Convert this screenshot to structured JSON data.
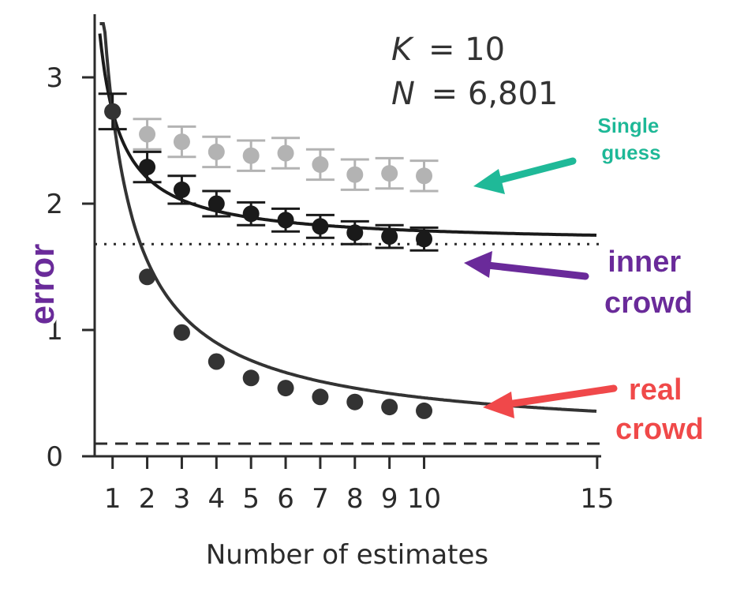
{
  "chart_data": {
    "type": "scatter",
    "title": "",
    "xlabel": "Number of estimates",
    "ylabel": "error",
    "xlim": [
      0.4,
      15
    ],
    "ylim": [
      0,
      3.5
    ],
    "x_ticks": [
      1,
      2,
      3,
      4,
      5,
      6,
      7,
      8,
      9,
      10,
      15
    ],
    "x_tick_labels": [
      "1",
      "2",
      "3",
      "4",
      "5",
      "6",
      "7",
      "8",
      "9",
      "10",
      "15"
    ],
    "y_ticks": [
      0,
      1,
      2,
      3
    ],
    "y_tick_labels": [
      "0",
      "1",
      "2",
      "3"
    ],
    "params": [
      {
        "symbol": "K",
        "value": "= 10"
      },
      {
        "symbol": "N",
        "value": "= 6,801"
      }
    ],
    "series": [
      {
        "name": "Single guess",
        "color": "#b3b3b3",
        "x": [
          2,
          3,
          4,
          5,
          6,
          7,
          8,
          9,
          10
        ],
        "y": [
          2.55,
          2.49,
          2.41,
          2.38,
          2.4,
          2.31,
          2.23,
          2.24,
          2.22
        ],
        "err": [
          0.12,
          0.12,
          0.12,
          0.12,
          0.12,
          0.12,
          0.12,
          0.12,
          0.12
        ]
      },
      {
        "name": "inner crowd",
        "color": "#1a1a1a",
        "x": [
          1,
          2,
          3,
          4,
          5,
          6,
          7,
          8,
          9,
          10
        ],
        "y": [
          2.73,
          2.29,
          2.11,
          2.0,
          1.92,
          1.87,
          1.82,
          1.77,
          1.74,
          1.72
        ],
        "err": [
          0.14,
          0.12,
          0.11,
          0.1,
          0.09,
          0.09,
          0.09,
          0.09,
          0.09,
          0.09
        ],
        "fit": {
          "asymptote": 1.68,
          "a": 1.05,
          "power": 1.0
        }
      },
      {
        "name": "real crowd",
        "color": "#333333",
        "x": [
          1,
          2,
          3,
          4,
          5,
          6,
          7,
          8,
          9,
          10
        ],
        "y": [
          2.73,
          1.42,
          0.98,
          0.75,
          0.62,
          0.54,
          0.47,
          0.43,
          0.39,
          0.36
        ],
        "fit": {
          "asymptote": 0.1,
          "a": 2.63,
          "power": 0.86
        }
      }
    ],
    "reference_lines": [
      {
        "style": "dotted",
        "y": 1.68
      },
      {
        "style": "dashed",
        "y": 0.1
      }
    ],
    "annotations": [
      {
        "lines": [
          "Single",
          "guess"
        ],
        "color": "#17a88c",
        "fill": "#1fb998"
      },
      {
        "lines": [
          "inner",
          "crowd"
        ],
        "color": "#6a2a9a",
        "fill": "#6a2a9a"
      },
      {
        "lines": [
          "real",
          "crowd"
        ],
        "color": "#f0484a",
        "fill": "#f0484a"
      }
    ]
  }
}
